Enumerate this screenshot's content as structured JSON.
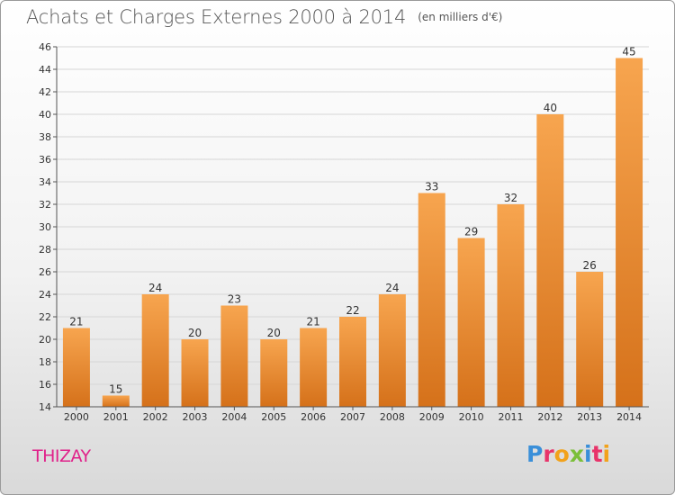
{
  "header": {
    "title": "Achats et Charges Externes 2000 à 2014",
    "unit": "(en milliers d'€)"
  },
  "footer": {
    "place": "THIZAY",
    "logo_letters": [
      {
        "char": "P",
        "color": "#3a8fd9"
      },
      {
        "char": "r",
        "color": "#e8336a"
      },
      {
        "char": "o",
        "color": "#f2a21b"
      },
      {
        "char": "x",
        "color": "#7bbf3a"
      },
      {
        "char": "i",
        "color": "#3a8fd9"
      },
      {
        "char": "t",
        "color": "#e8336a"
      },
      {
        "char": "i",
        "color": "#f2a21b"
      }
    ]
  },
  "chart_data": {
    "type": "bar",
    "title": "Achats et Charges Externes 2000 à 2014",
    "unit_label": "(en milliers d'€)",
    "categories": [
      "2000",
      "2001",
      "2002",
      "2003",
      "2004",
      "2005",
      "2006",
      "2007",
      "2008",
      "2009",
      "2010",
      "2011",
      "2012",
      "2013",
      "2014"
    ],
    "values": [
      21,
      15,
      24,
      20,
      23,
      20,
      21,
      22,
      24,
      33,
      29,
      32,
      40,
      26,
      45
    ],
    "ylim": [
      14,
      46
    ],
    "yticks": [
      14,
      16,
      18,
      20,
      22,
      24,
      26,
      28,
      30,
      32,
      34,
      36,
      38,
      40,
      42,
      44,
      46
    ],
    "grid": true,
    "legend": "none",
    "colors": {
      "bar_light": "#f7a54f",
      "bar_dark": "#d5711a",
      "grid": "#d6d6d6",
      "axis": "#555555"
    }
  }
}
